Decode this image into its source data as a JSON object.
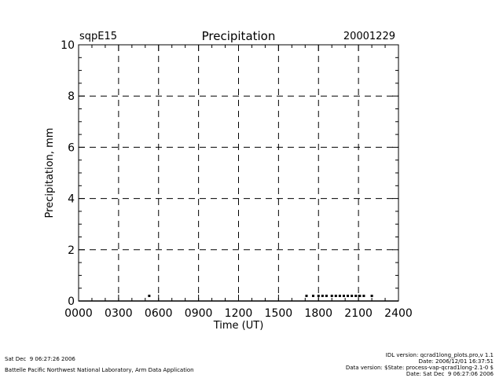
{
  "chart_data": {
    "type": "scatter",
    "site": "sqpE15",
    "title": "Precipitation",
    "date": "20001229",
    "xlabel": "Time (UT)",
    "ylabel": "Precipitation, mm",
    "xlim": [
      0,
      24
    ],
    "ylim": [
      0,
      10
    ],
    "x_ticks": [
      0,
      3,
      6,
      9,
      12,
      15,
      18,
      21,
      24
    ],
    "x_tick_labels": [
      "0000",
      "0300",
      "0600",
      "0900",
      "1200",
      "1500",
      "1800",
      "2100",
      "2400"
    ],
    "y_ticks": [
      0,
      2,
      4,
      6,
      8,
      10
    ],
    "y_tick_labels": [
      "0",
      "2",
      "4",
      "6",
      "8",
      "10"
    ],
    "grid": true,
    "series": [
      {
        "x": [
          5.3,
          17.1,
          17.6,
          18.0,
          18.3,
          18.6,
          19.0,
          19.3,
          19.6,
          19.9,
          20.2,
          20.5,
          20.8,
          21.1,
          21.4,
          22.0
        ],
        "y": [
          0.2,
          0.2,
          0.2,
          0.2,
          0.2,
          0.2,
          0.2,
          0.2,
          0.2,
          0.2,
          0.2,
          0.2,
          0.2,
          0.2,
          0.2,
          0.2
        ]
      }
    ]
  },
  "footer": {
    "left_line1": "Sat Dec  9 06:27:26 2006",
    "left_line2": "Battelle Pacific Northwest National Laboratory, Arm Data Application",
    "right_line1": "IDL version: qcrad1long_plots.pro,v 1.1",
    "right_line2": "Date: 2006/12/01 16:37:51",
    "right_line3": "Data version: $State: process-vap-qcrad1long-2.1-0 $",
    "right_line4": "Date: Sat Dec  9 06:27:06 2006"
  }
}
